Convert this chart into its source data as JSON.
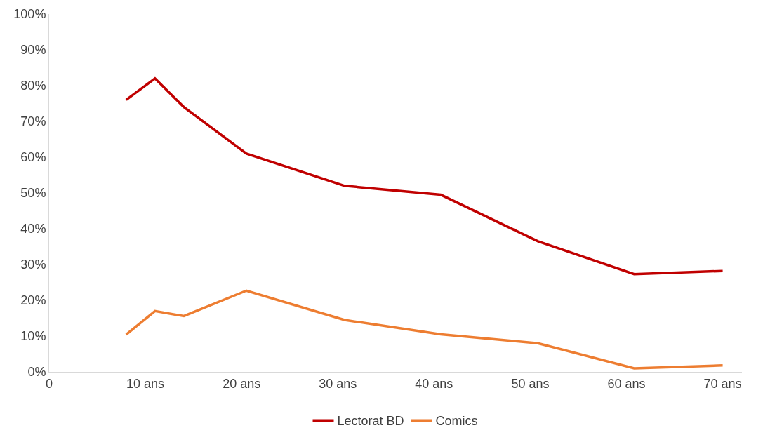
{
  "chart_data": {
    "type": "line",
    "xlim": [
      0,
      72
    ],
    "xticks": [
      {
        "value": 0,
        "label": "0"
      },
      {
        "value": 10,
        "label": "10 ans"
      },
      {
        "value": 20,
        "label": "20 ans"
      },
      {
        "value": 30,
        "label": "30 ans"
      },
      {
        "value": 40,
        "label": "40 ans"
      },
      {
        "value": 50,
        "label": "50 ans"
      },
      {
        "value": 60,
        "label": "60 ans"
      },
      {
        "value": 70,
        "label": "70 ans"
      }
    ],
    "ylim": [
      0,
      100
    ],
    "yticks": [
      {
        "value": 0,
        "label": "0%"
      },
      {
        "value": 10,
        "label": "10%"
      },
      {
        "value": 20,
        "label": "20%"
      },
      {
        "value": 30,
        "label": "30%"
      },
      {
        "value": 40,
        "label": "40%"
      },
      {
        "value": 50,
        "label": "50%"
      },
      {
        "value": 60,
        "label": "60%"
      },
      {
        "value": 70,
        "label": "70%"
      },
      {
        "value": 80,
        "label": "80%"
      },
      {
        "value": 90,
        "label": "90%"
      },
      {
        "value": 100,
        "label": "100%"
      }
    ],
    "x": [
      8,
      11,
      14,
      20.5,
      30.7,
      40.7,
      50.8,
      60.8,
      70
    ],
    "series": [
      {
        "name": "Lectorat BD",
        "color": "#c00000",
        "values": [
          76,
          82,
          74,
          61,
          52,
          49.5,
          36.5,
          27.3,
          28.2
        ]
      },
      {
        "name": "Comics",
        "color": "#ed7d31",
        "values": [
          10.4,
          17,
          15.6,
          22.7,
          14.5,
          10.5,
          8,
          1,
          1.8
        ]
      }
    ],
    "grid": false,
    "legend": "bottom",
    "marker": "none",
    "line_style": "solid"
  }
}
